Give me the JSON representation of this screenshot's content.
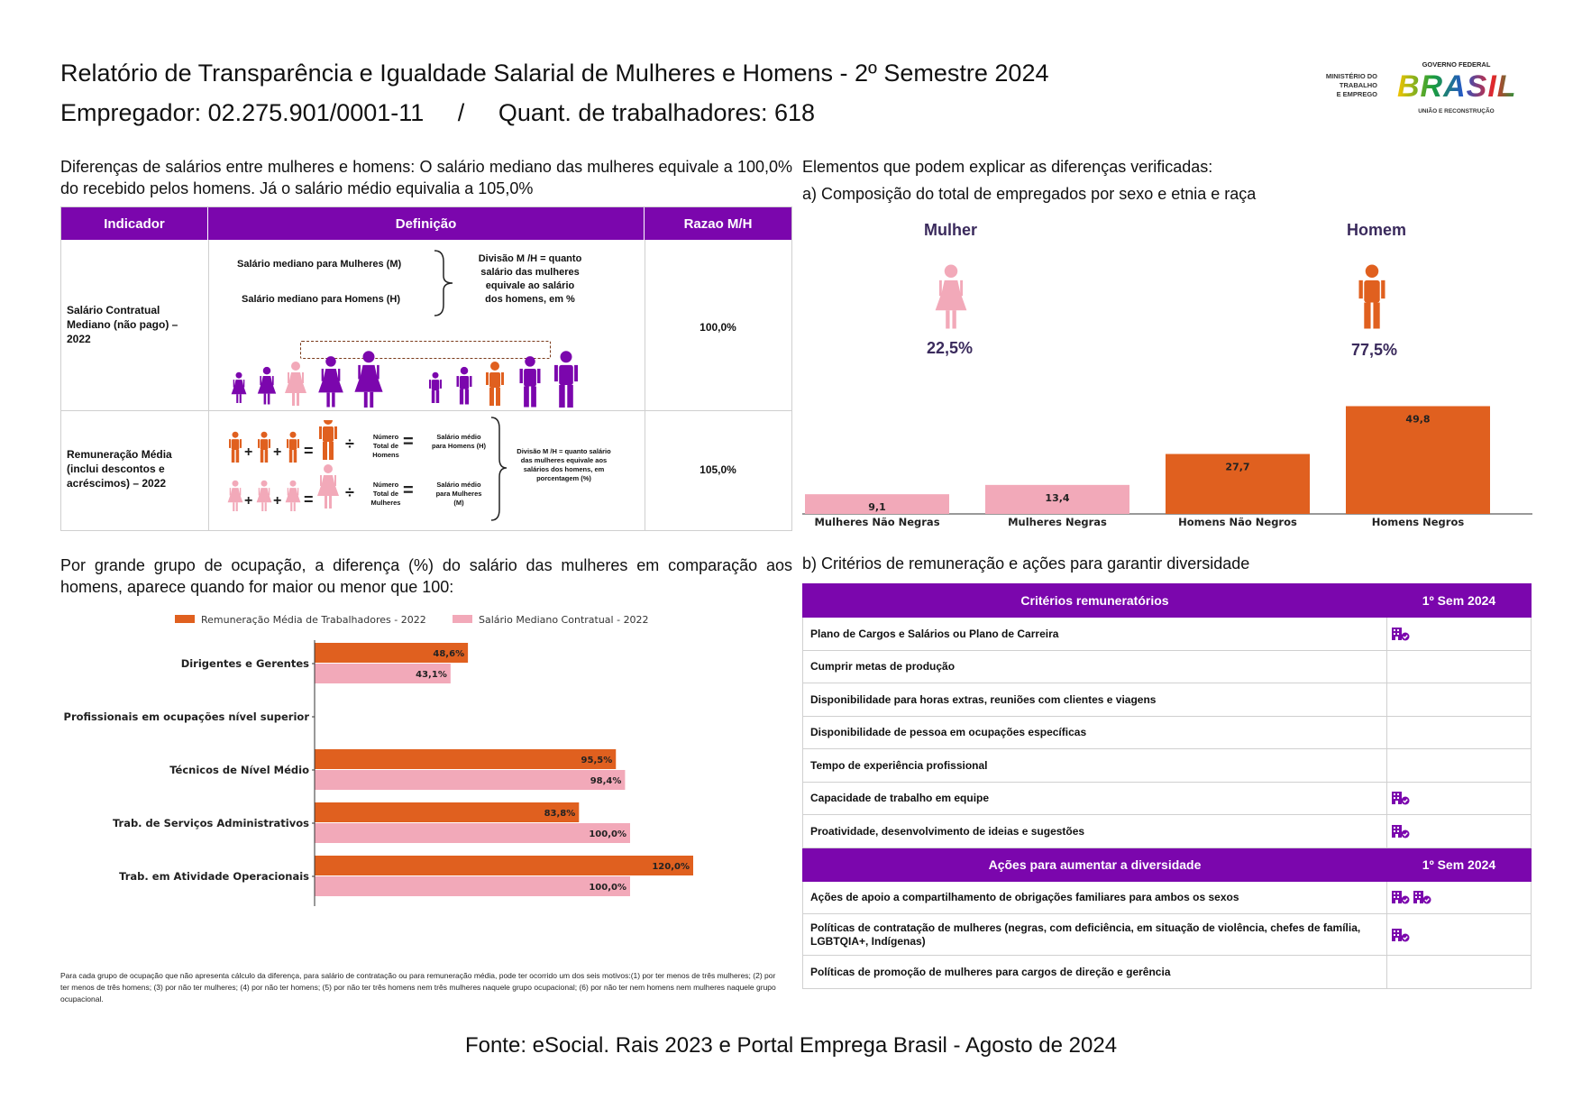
{
  "header": {
    "title": "Relatório de Transparência e Igualdade Salarial de Mulheres e Homens - 2º Semestre 2024",
    "employer_line": "Empregador: 02.275.901/0001-11     /     Quant. de trabalhadores: 618",
    "logo": {
      "ministry_line1": "MINISTÉRIO DO",
      "ministry_line2": "TRABALHO",
      "ministry_line3": "E EMPREGO",
      "gov_top": "GOVERNO FEDERAL",
      "gov_word": "BRASIL",
      "gov_bottom": "UNIÃO E RECONSTRUÇÃO"
    }
  },
  "intro_left": "Diferenças de salários entre mulheres e homens: O salário mediano das mulheres equivale a 100,0% do recebido pelos homens. Já o salário médio equivalia a 105,0%",
  "intro_right": "Elementos que podem explicar as diferenças verificadas:",
  "section_a": "a) Composição do total de empregados por sexo e etnia e raça",
  "indicator_table": {
    "headers": [
      "Indicador",
      "Definição",
      "Razao M/H"
    ],
    "row1": {
      "indicator": "Salário Contratual Mediano (não pago) – 2022",
      "def_women": "Salário mediano para Mulheres (M)",
      "def_men": "Salário mediano para Homens (H)",
      "def_division": "Divisão M /H = quanto salário das mulheres equivale ao salário dos homens, em %",
      "ratio": "100,0%"
    },
    "row2": {
      "indicator": "Remuneração Média (inclui descontos e acréscimos) – 2022",
      "men_count": "Número Total de Homens",
      "men_avg": "Salário médio para Homens (H)",
      "women_count": "Número Total de Mulheres",
      "women_avg": "Salário médio para Mulheres (M)",
      "division": "Divisão M /H = quanto salário das mulheres equivale aos salários dos homens, em porcentagem (%)",
      "ratio": "105,0%"
    }
  },
  "gender": {
    "women_label": "Mulher",
    "women_pct": "22,5%",
    "men_label": "Homem",
    "men_pct": "77,5%"
  },
  "composition_chart": {
    "categories": [
      "Mulheres Não Negras",
      "Mulheres Negras",
      "Homens Não Negros",
      "Homens Negros"
    ],
    "values": [
      9.1,
      13.4,
      27.7,
      49.8
    ],
    "labels": [
      "9,1",
      "13,4",
      "27,7",
      "49,8"
    ],
    "colors": [
      "#f2a9b9",
      "#f2a9b9",
      "#e0601f",
      "#e0601f"
    ]
  },
  "occupation_intro": "Por grande grupo de ocupação, a diferença (%) do salário das mulheres em comparação aos homens, aparece quando for maior ou menor que 100:",
  "section_b": "b) Critérios de remuneração e ações para garantir diversidade",
  "chart_data": {
    "type": "bar",
    "orientation": "horizontal",
    "categories": [
      "Dirigentes e Gerentes",
      "Profissionais em ocupações nível superior",
      "Técnicos de Nível Médio",
      "Trab. de Serviços Administrativos",
      "Trab. em Atividade Operacionais"
    ],
    "series": [
      {
        "name": "Remuneração Média de Trabalhadores - 2022",
        "values": [
          48.6,
          null,
          95.5,
          83.8,
          120.0
        ],
        "labels": [
          "48,6%",
          "",
          "95,5%",
          "83,8%",
          "120,0%"
        ],
        "color": "#e0601f"
      },
      {
        "name": "Salário Mediano Contratual - 2022",
        "values": [
          43.1,
          null,
          98.4,
          100.0,
          100.0
        ],
        "labels": [
          "43,1%",
          "",
          "98,4%",
          "100,0%",
          "100,0%"
        ],
        "color": "#f2a9b9"
      }
    ],
    "xlim": [
      0,
      130
    ],
    "legend": "top"
  },
  "footnote": "Para cada grupo de ocupação que não apresenta cálculo da diferença, para salário de contratação ou para remuneração média, pode ter ocorrido um dos seis motivos:(1) por ter menos de três mulheres; (2) por ter menos de três homens; (3) por não ter mulheres; (4) por não ter homens; (5) por não ter três homens nem três mulheres naquele grupo ocupacional; (6) por não ter nem homens nem mulheres naquele grupo ocupacional.",
  "criteria": {
    "header": "Critérios remuneratórios",
    "col": "1º Sem 2024",
    "rows": [
      {
        "label": "Plano de Cargos e Salários ou Plano de Carreira",
        "marks": 1
      },
      {
        "label": "Cumprir metas de produção",
        "marks": 0
      },
      {
        "label": "Disponibilidade para horas extras, reuniões com clientes e viagens",
        "marks": 0
      },
      {
        "label": "Disponibilidade de pessoa em ocupações específicas",
        "marks": 0
      },
      {
        "label": "Tempo de experiência profissional",
        "marks": 0
      },
      {
        "label": "Capacidade de trabalho em equipe",
        "marks": 1
      },
      {
        "label": "Proatividade, desenvolvimento de ideias e sugestões",
        "marks": 1
      }
    ]
  },
  "actions": {
    "header": "Ações para aumentar a diversidade",
    "col": "1º Sem 2024",
    "rows": [
      {
        "label": "Ações de apoio a compartilhamento de obrigações familiares para ambos os sexos",
        "marks": 2
      },
      {
        "label": "Políticas de contratação de mulheres (negras, com deficiência, em situação de violência, chefes de família, LGBTQIA+, Indígenas)",
        "marks": 1
      },
      {
        "label": "Políticas de promoção de mulheres para cargos de direção e gerência",
        "marks": 0
      }
    ]
  },
  "source": "Fonte: eSocial. Rais 2023 e Portal Emprega Brasil - Agosto de 2024",
  "colors": {
    "purple": "#7b06ad",
    "orange": "#e0601f",
    "pink": "#f2a9b9"
  }
}
